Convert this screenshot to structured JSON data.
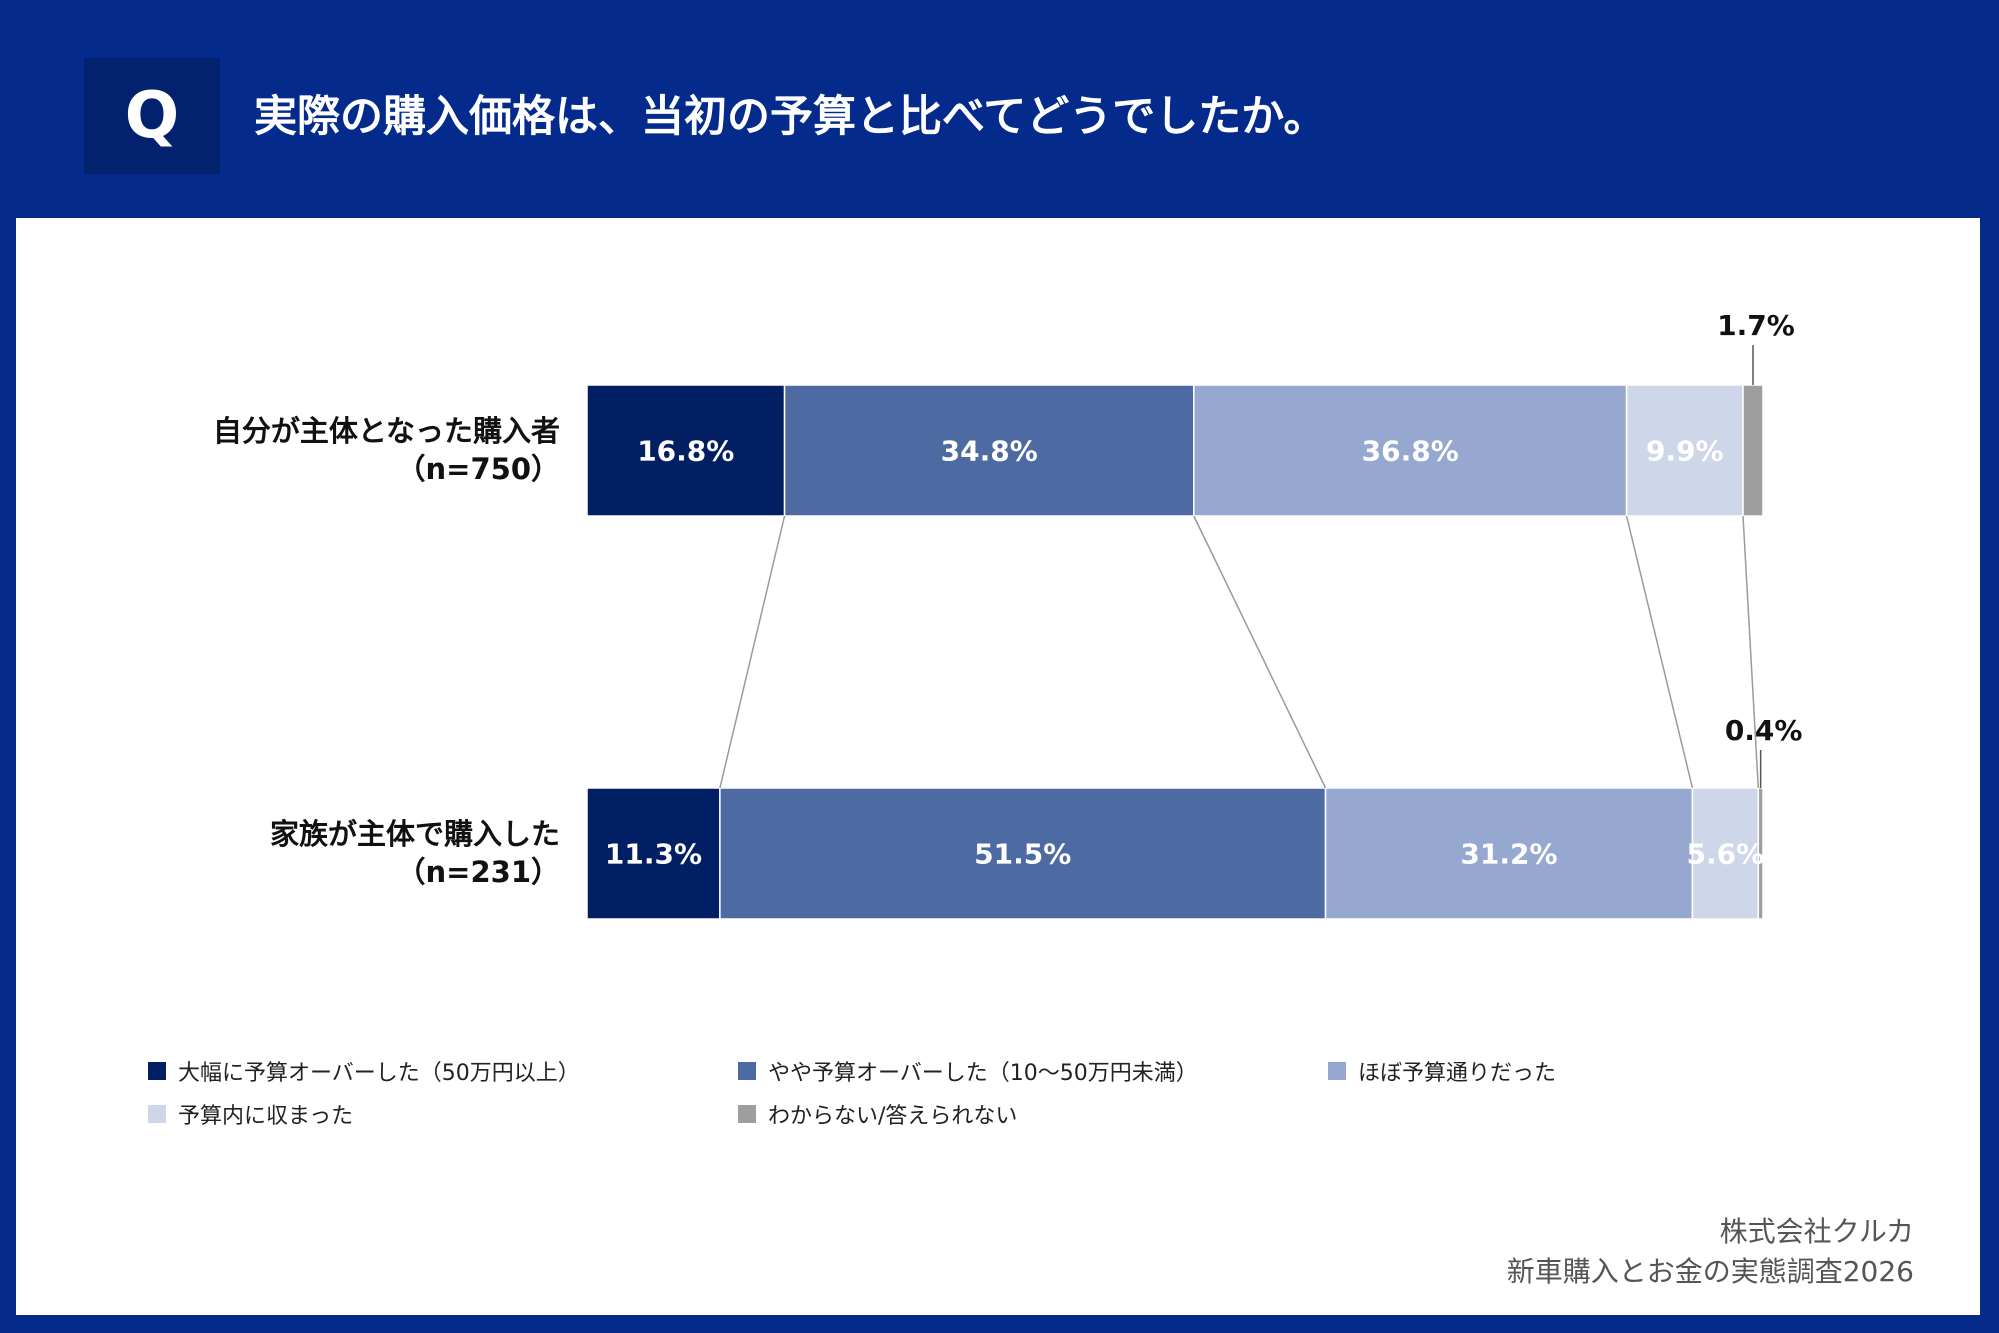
{
  "header": {
    "badge": "Q",
    "question": "実際の購入価格は、当初の予算と比べてどうでしたか。"
  },
  "chart_data": {
    "type": "bar",
    "orientation": "horizontal",
    "stacked": true,
    "normalized_percent": true,
    "title": "実際の購入価格は、当初の予算と比べてどうでしたか。",
    "categories": [
      {
        "line1": "自分が主体となった購入者",
        "line2": "（n=750）"
      },
      {
        "line1": "家族が主体で購入した",
        "line2": "（n=231）"
      }
    ],
    "series": [
      {
        "name": "大幅に予算オーバーした（50万円以上）",
        "color": "#011f62",
        "values": [
          16.8,
          11.3
        ],
        "labels": [
          "16.8%",
          "11.3%"
        ]
      },
      {
        "name": "やや予算オーバーした（10〜50万円未満）",
        "color": "#4e6aa2",
        "values": [
          34.8,
          51.5
        ],
        "labels": [
          "34.8%",
          "51.5%"
        ]
      },
      {
        "name": "ほぼ予算通りだった",
        "color": "#97a8d0",
        "values": [
          36.8,
          31.2
        ],
        "labels": [
          "36.8%",
          "31.2%"
        ]
      },
      {
        "name": "予算内に収まった",
        "color": "#ced6e9",
        "values": [
          9.9,
          5.6
        ],
        "labels": [
          "9.9%",
          "5.6%"
        ]
      },
      {
        "name": "わからない/答えられない",
        "color": "#9e9e9e",
        "values": [
          1.7,
          0.4
        ],
        "labels": [
          "1.7%",
          "0.4%"
        ]
      }
    ]
  },
  "legend": {
    "items": [
      {
        "label": "大幅に予算オーバーした（50万円以上）",
        "color": "#011f62"
      },
      {
        "label": "やや予算オーバーした（10〜50万円未満）",
        "color": "#4e6aa2"
      },
      {
        "label": "ほぼ予算通りだった",
        "color": "#97a8d0"
      },
      {
        "label": "予算内に収まった",
        "color": "#ced6e9"
      },
      {
        "label": "わからない/答えられない",
        "color": "#9e9e9e"
      }
    ]
  },
  "source": {
    "company": "株式会社クルカ",
    "survey": "新車購入とお金の実態調査2026"
  }
}
